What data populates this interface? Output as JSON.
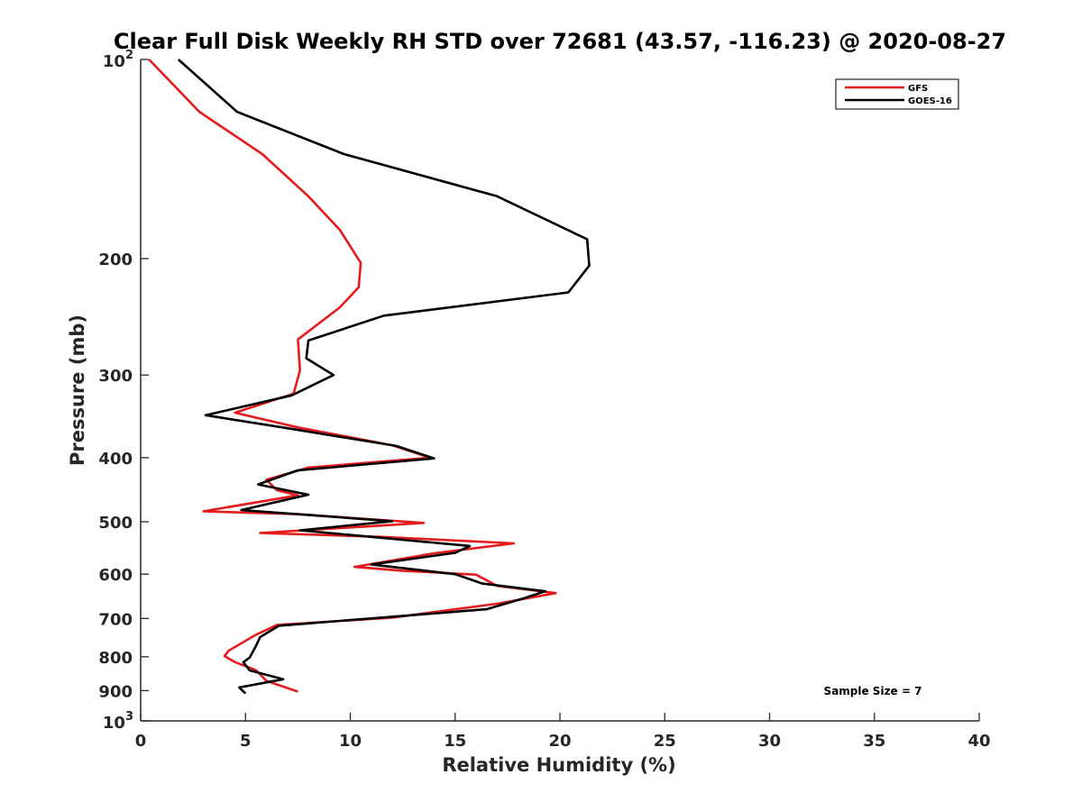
{
  "chart_data": {
    "type": "line",
    "title": "Clear Full Disk Weekly RH STD over 72681 (43.57, -116.23) @ 2020-08-27",
    "xlabel": "Relative Humidity (%)",
    "ylabel": "Pressure (mb)",
    "xlim": [
      0,
      40
    ],
    "ylim": [
      100,
      1000
    ],
    "y_scale": "log",
    "y_reversed": true,
    "x_ticks": [
      "0",
      "5",
      "10",
      "15",
      "20",
      "25",
      "30",
      "35",
      "40"
    ],
    "y_ticks": [
      {
        "value": 100,
        "base": "10",
        "exp": "2"
      },
      {
        "value": 200,
        "label": "200"
      },
      {
        "value": 300,
        "label": "300"
      },
      {
        "value": 400,
        "label": "400"
      },
      {
        "value": 500,
        "label": "500"
      },
      {
        "value": 600,
        "label": "600"
      },
      {
        "value": 700,
        "label": "700"
      },
      {
        "value": 800,
        "label": "800"
      },
      {
        "value": 900,
        "label": "900"
      },
      {
        "value": 1000,
        "base": "10",
        "exp": "3"
      }
    ],
    "legend_position": "top-right",
    "annotation": "Sample Size = 7",
    "grid": false,
    "series": [
      {
        "name": "GFS",
        "color": "#e41a1c",
        "points": [
          [
            0.4,
            100
          ],
          [
            2.8,
            120
          ],
          [
            5.8,
            139
          ],
          [
            8.0,
            161
          ],
          [
            9.5,
            181
          ],
          [
            10.5,
            203
          ],
          [
            10.4,
            221
          ],
          [
            9.5,
            237
          ],
          [
            7.5,
            265
          ],
          [
            7.6,
            295
          ],
          [
            7.3,
            320
          ],
          [
            4.5,
            342
          ],
          [
            7.5,
            360
          ],
          [
            12.0,
            383
          ],
          [
            13.8,
            400
          ],
          [
            8.0,
            414
          ],
          [
            6.0,
            432
          ],
          [
            6.5,
            448
          ],
          [
            7.5,
            456
          ],
          [
            3.0,
            482
          ],
          [
            7.5,
            487
          ],
          [
            13.5,
            502
          ],
          [
            5.7,
            520
          ],
          [
            11.5,
            527
          ],
          [
            17.8,
            539
          ],
          [
            14.0,
            558
          ],
          [
            10.2,
            585
          ],
          [
            12.5,
            593
          ],
          [
            16.0,
            601
          ],
          [
            17.0,
            625
          ],
          [
            19.8,
            641
          ],
          [
            17.0,
            665
          ],
          [
            12.0,
            698
          ],
          [
            6.5,
            716
          ],
          [
            5.5,
            741
          ],
          [
            4.2,
            783
          ],
          [
            4.0,
            798
          ],
          [
            4.5,
            815
          ],
          [
            5.5,
            838
          ],
          [
            6.0,
            870
          ],
          [
            7.5,
            903
          ]
        ]
      },
      {
        "name": "GOES-16",
        "color": "#000000",
        "points": [
          [
            1.8,
            100
          ],
          [
            4.6,
            120
          ],
          [
            9.7,
            139
          ],
          [
            17.0,
            161
          ],
          [
            21.3,
            187
          ],
          [
            21.4,
            205
          ],
          [
            20.4,
            225
          ],
          [
            11.6,
            244
          ],
          [
            8.0,
            266
          ],
          [
            7.9,
            283
          ],
          [
            9.2,
            300
          ],
          [
            7.2,
            322
          ],
          [
            3.1,
            345
          ],
          [
            7.0,
            361
          ],
          [
            12.2,
            384
          ],
          [
            14.0,
            401
          ],
          [
            7.5,
            418
          ],
          [
            5.6,
            439
          ],
          [
            8.0,
            455
          ],
          [
            4.8,
            480
          ],
          [
            12.0,
            499
          ],
          [
            7.6,
            515
          ],
          [
            15.7,
            544
          ],
          [
            15.0,
            557
          ],
          [
            11.0,
            580
          ],
          [
            15.0,
            600
          ],
          [
            16.3,
            620
          ],
          [
            19.3,
            637
          ],
          [
            18.3,
            652
          ],
          [
            16.5,
            678
          ],
          [
            6.6,
            718
          ],
          [
            5.7,
            747
          ],
          [
            5.5,
            770
          ],
          [
            5.2,
            802
          ],
          [
            4.9,
            815
          ],
          [
            5.2,
            839
          ],
          [
            6.8,
            865
          ],
          [
            4.7,
            890
          ],
          [
            5.0,
            909
          ]
        ]
      }
    ]
  }
}
